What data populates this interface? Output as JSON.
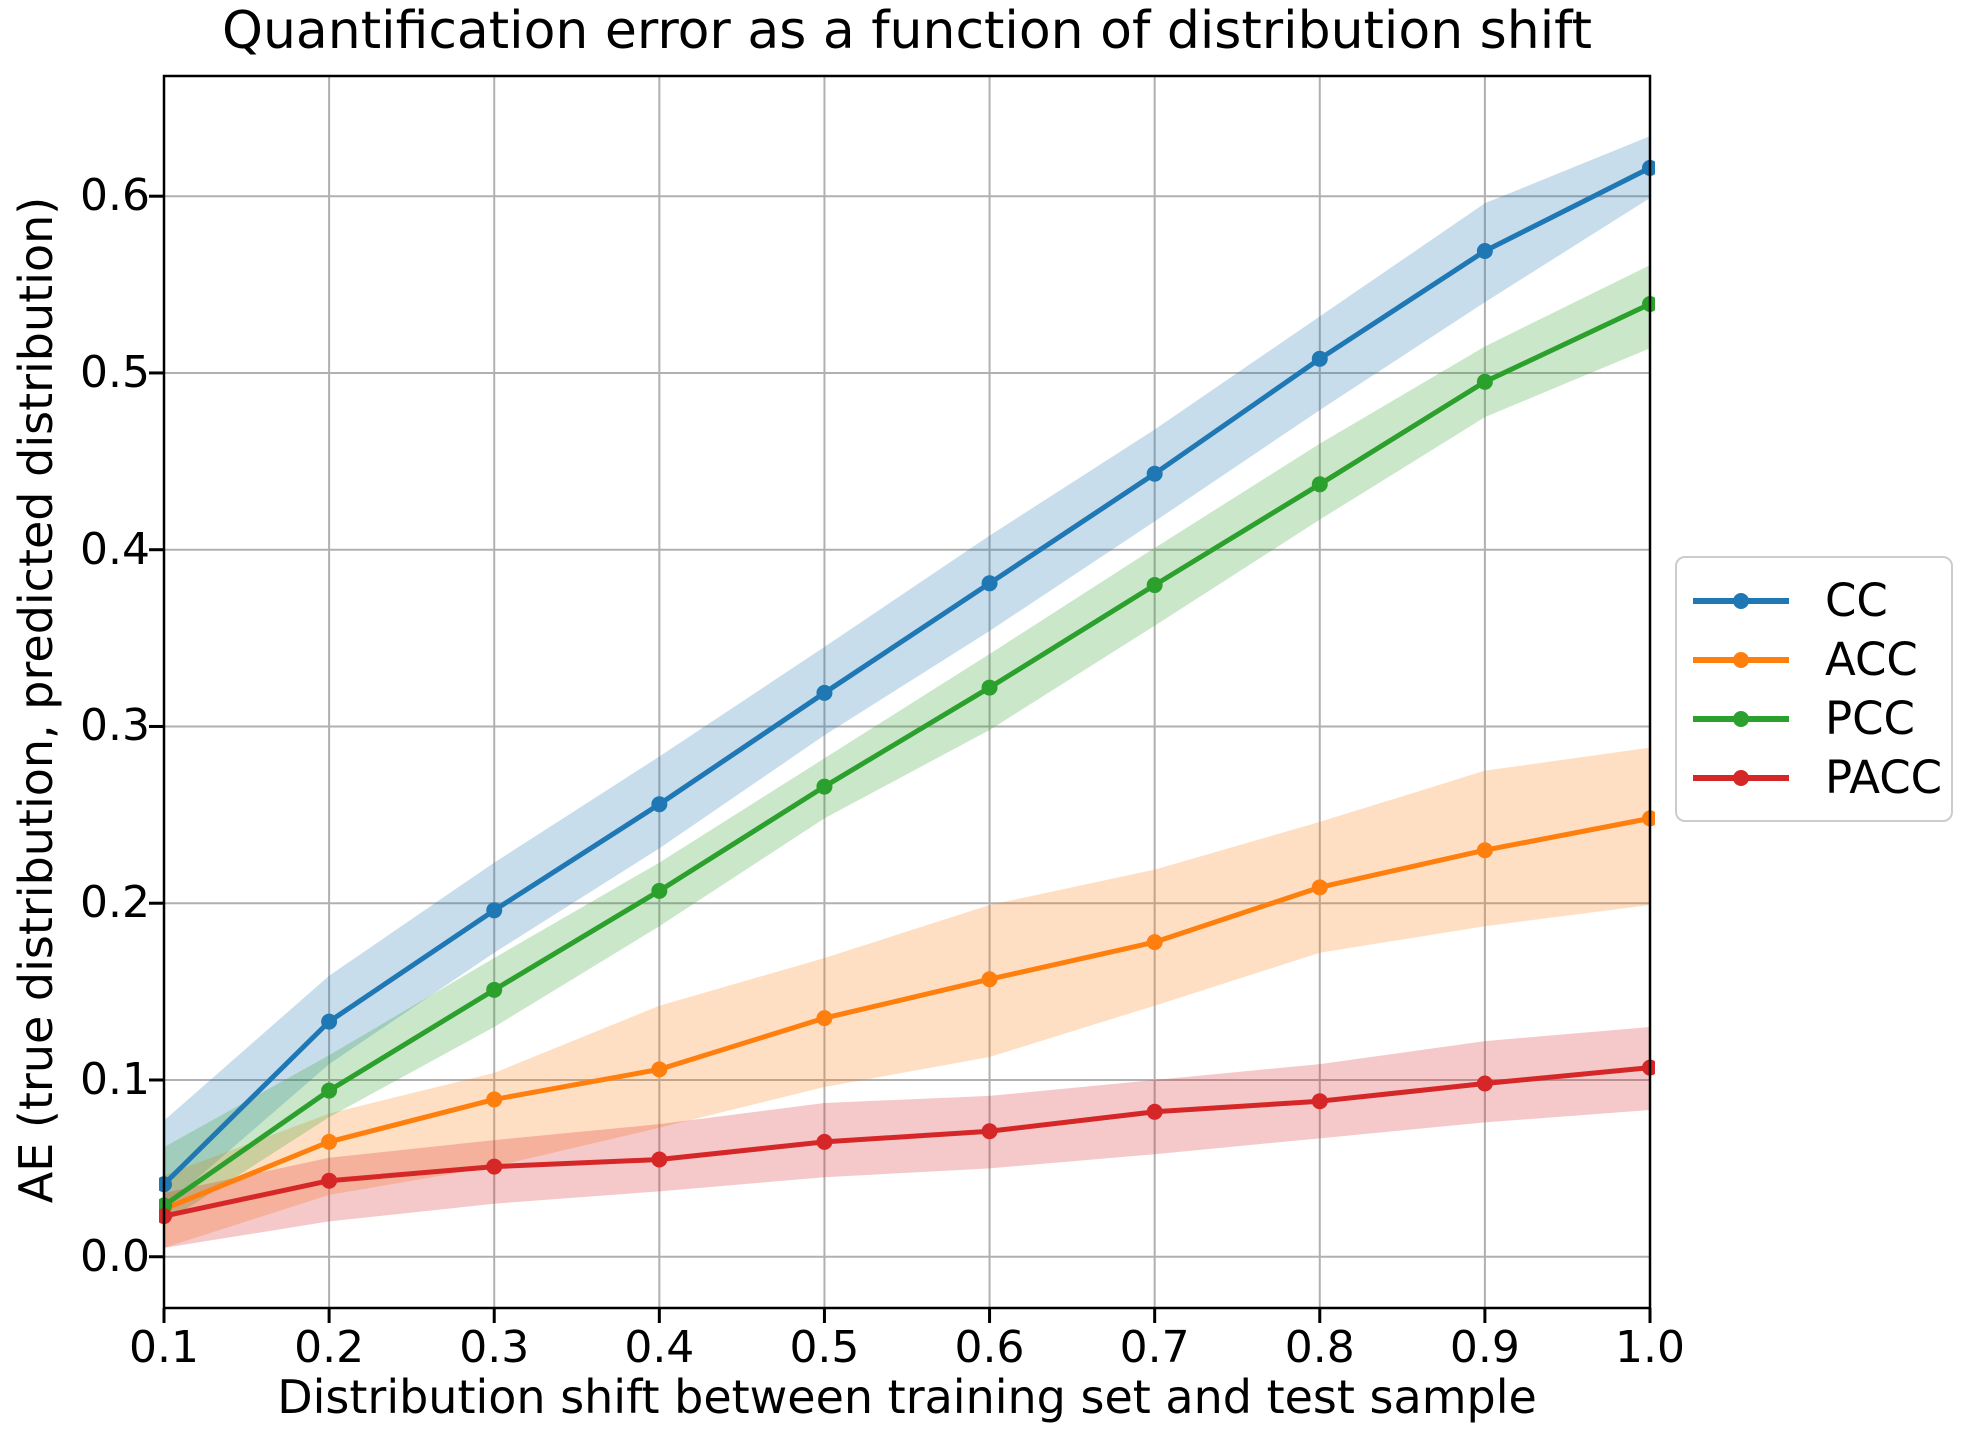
{
  "chart_data": {
    "type": "line",
    "title": "Quantification error as a function of distribution shift",
    "xlabel": "Distribution shift between training set and test sample",
    "ylabel": "AE (true distribution, predicted distribution)",
    "x": [
      0.1,
      0.2,
      0.3,
      0.4,
      0.5,
      0.6,
      0.7,
      0.8,
      0.9,
      1.0
    ],
    "x_tick_labels": [
      "0.1",
      "0.2",
      "0.3",
      "0.4",
      "0.5",
      "0.6",
      "0.7",
      "0.8",
      "0.9",
      "1.0"
    ],
    "y_ticks": [
      0.0,
      0.1,
      0.2,
      0.3,
      0.4,
      0.5,
      0.6
    ],
    "y_tick_labels": [
      "0.0",
      "0.1",
      "0.2",
      "0.3",
      "0.4",
      "0.5",
      "0.6"
    ],
    "xlim": [
      0.1,
      1.0
    ],
    "ylim": [
      -0.029,
      0.668
    ],
    "grid": true,
    "grid_color": "#b0b0b0",
    "legend_position": "right-outside",
    "band_alpha": 0.25,
    "series": [
      {
        "name": "CC",
        "color": "#1f77b4",
        "values": [
          0.041,
          0.133,
          0.196,
          0.256,
          0.319,
          0.381,
          0.443,
          0.508,
          0.569,
          0.616
        ],
        "band_low": [
          0.028,
          0.109,
          0.172,
          0.231,
          0.295,
          0.354,
          0.416,
          0.479,
          0.54,
          0.599
        ],
        "band_high": [
          0.077,
          0.159,
          0.223,
          0.283,
          0.345,
          0.408,
          0.468,
          0.532,
          0.596,
          0.634
        ]
      },
      {
        "name": "ACC",
        "color": "#ff7f0e",
        "values": [
          0.027,
          0.065,
          0.089,
          0.106,
          0.135,
          0.157,
          0.178,
          0.209,
          0.23,
          0.248
        ],
        "band_low": [
          0.005,
          0.035,
          0.051,
          0.073,
          0.096,
          0.113,
          0.142,
          0.172,
          0.187,
          0.199
        ],
        "band_high": [
          0.046,
          0.081,
          0.104,
          0.142,
          0.169,
          0.199,
          0.219,
          0.246,
          0.275,
          0.288
        ]
      },
      {
        "name": "PCC",
        "color": "#2ca02c",
        "values": [
          0.029,
          0.094,
          0.151,
          0.207,
          0.266,
          0.322,
          0.38,
          0.437,
          0.495,
          0.539
        ],
        "band_low": [
          0.019,
          0.079,
          0.13,
          0.187,
          0.248,
          0.298,
          0.357,
          0.417,
          0.475,
          0.514
        ],
        "band_high": [
          0.062,
          0.114,
          0.169,
          0.223,
          0.282,
          0.341,
          0.401,
          0.46,
          0.515,
          0.561
        ]
      },
      {
        "name": "PACC",
        "color": "#d62728",
        "values": [
          0.023,
          0.043,
          0.051,
          0.055,
          0.065,
          0.071,
          0.082,
          0.088,
          0.098,
          0.107
        ],
        "band_low": [
          0.005,
          0.02,
          0.03,
          0.037,
          0.045,
          0.05,
          0.058,
          0.067,
          0.076,
          0.083
        ],
        "band_high": [
          0.036,
          0.056,
          0.066,
          0.075,
          0.087,
          0.091,
          0.1,
          0.109,
          0.122,
          0.13
        ]
      }
    ]
  }
}
